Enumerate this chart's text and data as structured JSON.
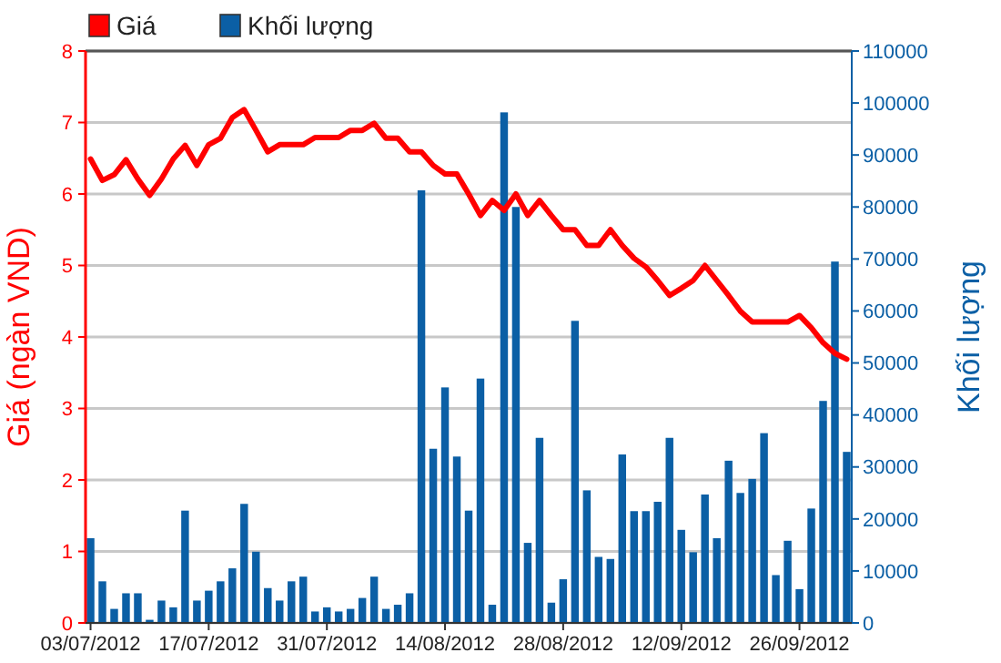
{
  "chart_data": {
    "type": "bar",
    "ylabel": "Giá (ngàn VND)",
    "y2label": "Khối lượng",
    "categories": [
      "03/07/2012",
      null,
      null,
      null,
      null,
      null,
      null,
      null,
      null,
      null,
      "17/07/2012",
      null,
      null,
      null,
      null,
      null,
      null,
      null,
      null,
      null,
      "31/07/2012",
      null,
      null,
      null,
      null,
      null,
      null,
      null,
      null,
      null,
      "14/08/2012",
      null,
      null,
      null,
      null,
      null,
      null,
      null,
      null,
      null,
      "28/08/2012",
      null,
      null,
      null,
      null,
      null,
      null,
      null,
      null,
      null,
      "12/09/2012",
      null,
      null,
      null,
      null,
      null,
      null,
      null,
      null,
      null,
      "26/09/2012",
      null,
      null,
      null,
      null
    ],
    "series": [
      {
        "name": "Giá",
        "type": "line",
        "axis": "y",
        "color": "#ff0000",
        "values": [
          6.49,
          6.19,
          6.27,
          6.48,
          6.21,
          5.98,
          6.21,
          6.49,
          6.68,
          6.4,
          6.69,
          6.78,
          7.07,
          7.18,
          6.89,
          6.59,
          6.69,
          6.69,
          6.69,
          6.79,
          6.79,
          6.79,
          6.89,
          6.89,
          6.99,
          6.78,
          6.78,
          6.59,
          6.59,
          6.4,
          6.28,
          6.28,
          6.0,
          5.7,
          5.91,
          5.77,
          6.0,
          5.7,
          5.91,
          5.7,
          5.5,
          5.5,
          5.28,
          5.28,
          5.5,
          5.28,
          5.1,
          4.98,
          4.79,
          4.58,
          4.68,
          4.79,
          5.0,
          4.79,
          4.58,
          4.36,
          4.21,
          4.21,
          4.21,
          4.21,
          4.3,
          4.13,
          3.92,
          3.77,
          3.69
        ]
      },
      {
        "name": "Khối lượng",
        "axis": "y2",
        "color": "#0b5fa5",
        "values": [
          16300,
          8000,
          2700,
          5700,
          5700,
          600,
          4300,
          3000,
          21600,
          4300,
          6200,
          8000,
          10500,
          22900,
          13700,
          6700,
          4300,
          8000,
          8900,
          2200,
          3000,
          2200,
          2700,
          4800,
          8900,
          2700,
          3500,
          5700,
          83200,
          33500,
          45300,
          32000,
          21600,
          47000,
          3500,
          98200,
          80000,
          15400,
          35600,
          3900,
          8400,
          58100,
          25500,
          12700,
          12300,
          32400,
          21500,
          21500,
          23300,
          35600,
          17900,
          13600,
          24700,
          16300,
          31200,
          25000,
          27700,
          36500,
          9200,
          15800,
          6500,
          22000,
          42700,
          69500,
          32900
        ]
      }
    ],
    "ylim": [
      0,
      8
    ],
    "yticks": [
      0,
      1,
      2,
      3,
      4,
      5,
      6,
      7,
      8
    ],
    "y2lim": [
      0,
      110000
    ],
    "y2ticks": [
      0,
      10000,
      20000,
      30000,
      40000,
      50000,
      60000,
      70000,
      80000,
      90000,
      100000,
      110000
    ],
    "grid": "y",
    "legend": "top left",
    "marker": "none",
    "line_style": "solid"
  }
}
